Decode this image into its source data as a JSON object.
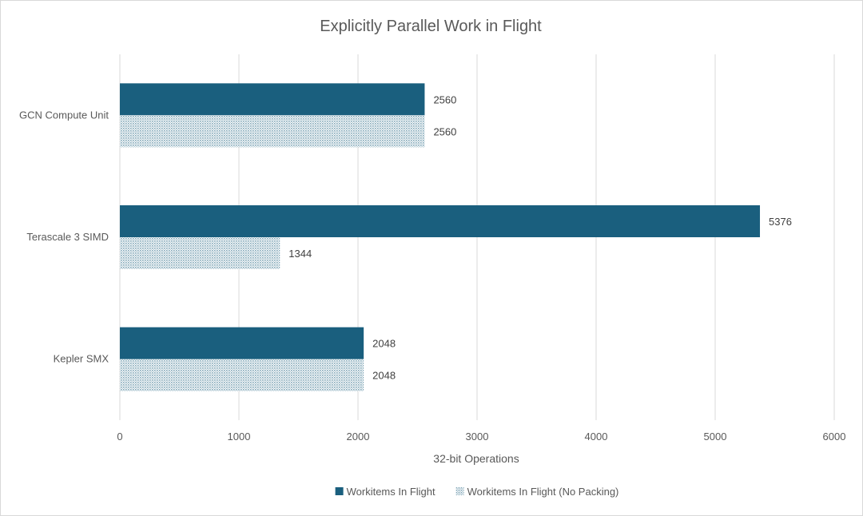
{
  "chart_data": {
    "type": "bar",
    "orientation": "horizontal",
    "title": "Explicitly Parallel Work in Flight",
    "xlabel": "32-bit Operations",
    "ylabel": "",
    "categories": [
      "GCN Compute Unit",
      "Terascale 3 SIMD",
      "Kepler SMX"
    ],
    "series": [
      {
        "name": "Workitems In Flight",
        "values": [
          2560,
          5376,
          2048
        ],
        "color": "#1a5f7e",
        "pattern": "solid"
      },
      {
        "name": "Workitems In Flight (No Packing)",
        "values": [
          2560,
          1344,
          2048
        ],
        "color": "#1a5f7e",
        "pattern": "dotted"
      }
    ],
    "xlim": [
      0,
      6000
    ],
    "xticks": [
      0,
      1000,
      2000,
      3000,
      4000,
      5000,
      6000
    ],
    "grid": true,
    "legend_position": "bottom"
  }
}
